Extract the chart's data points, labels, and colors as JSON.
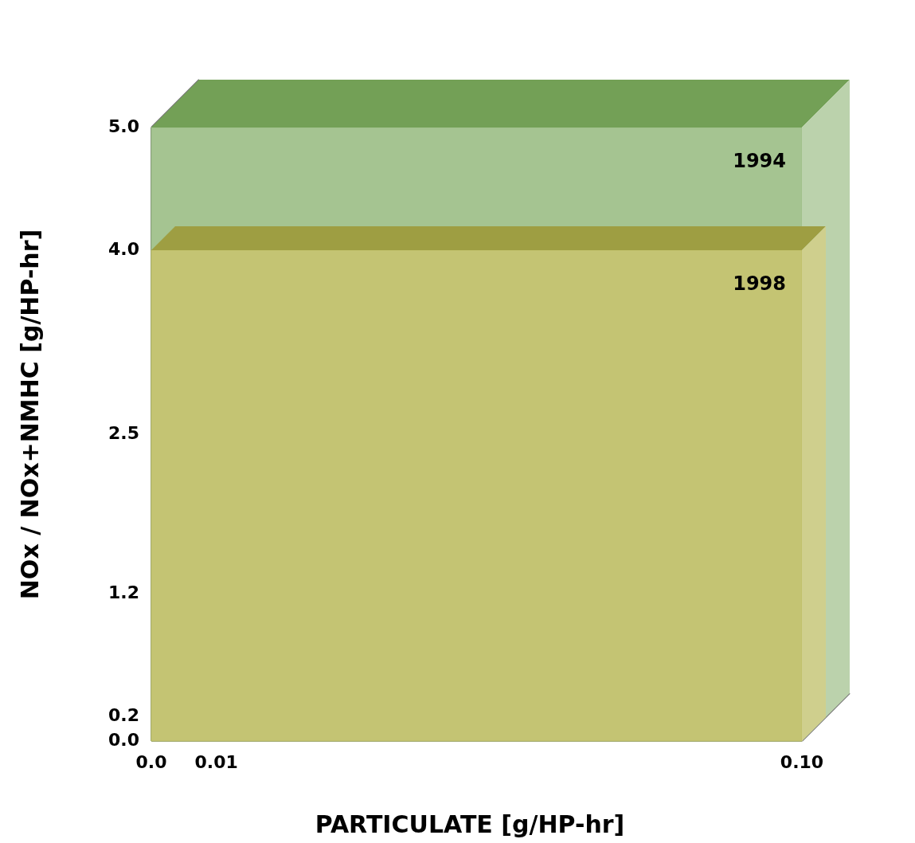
{
  "chart_data": {
    "type": "area",
    "xlabel": "PARTICULATE [g/HP-hr]",
    "ylabel": "NOx / NOx+NMHC [g/HP-hr]",
    "x": [
      0,
      0.1
    ],
    "series": [
      {
        "name": "1994",
        "color": "#a5c491",
        "values": [
          5.0,
          5.0
        ]
      },
      {
        "name": "1998",
        "color": "#c4c473",
        "values": [
          4.0,
          4.0
        ]
      }
    ],
    "xlim": [
      0,
      0.1
    ],
    "ylim": [
      0,
      5
    ],
    "xticks": [
      {
        "value": 0,
        "label": "0.0"
      },
      {
        "value": 0.01,
        "label": "0.01"
      },
      {
        "value": 0.1,
        "label": "0.10"
      }
    ],
    "yticks": [
      {
        "value": 0,
        "label": "0.0"
      },
      {
        "value": 0.2,
        "label": "0.2"
      },
      {
        "value": 1.2,
        "label": "1.2"
      },
      {
        "value": 2.5,
        "label": "2.5"
      },
      {
        "value": 4,
        "label": "4.0"
      },
      {
        "value": 5,
        "label": "5.0"
      }
    ],
    "legend": false
  }
}
